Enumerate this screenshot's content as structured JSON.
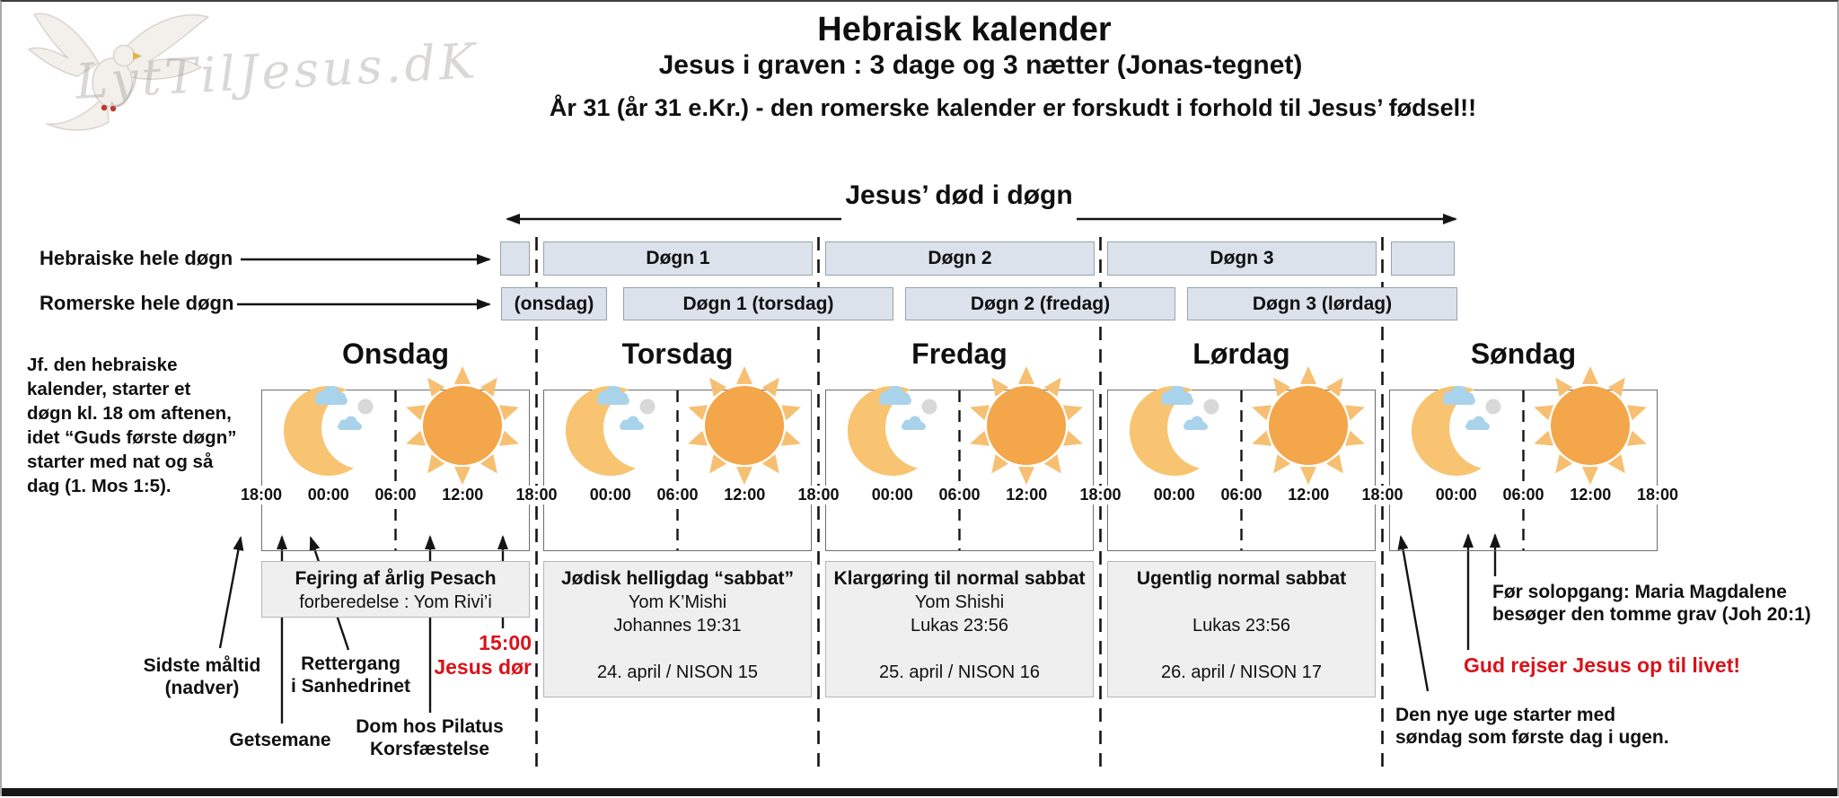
{
  "colors": {
    "red": "#d9121a",
    "row_box_fill": "#dbe2ec",
    "row_box_border": "#99a2ac",
    "note_fill": "#efefef",
    "note_border": "#b6b6b6",
    "panel_border": "#6e6e6e",
    "ink": "#141414",
    "sun": "#f3a64a",
    "sun_ray": "#f7bf71",
    "moon": "#f8c471",
    "cloud": "#a9d2eb",
    "cloud_dot": "#d8d8d8"
  },
  "watermark": {
    "text": "LytTilJesus.dK"
  },
  "header": {
    "title": "Hebraisk kalender",
    "subtitle": "Jesus i graven : 3 dage og 3 nætter (Jonas-tegnet)",
    "note": "År 31 (år 31 e.Kr.)  - den romerske kalender er forskudt i forhold til Jesus’ fødsel!!"
  },
  "death_span": {
    "label": "Jesus’ død i døgn"
  },
  "row_labels": {
    "hebrew": "Hebraiske hele døgn",
    "roman": "Romerske hele døgn"
  },
  "hebrew_row": [
    "",
    "Døgn 1",
    "Døgn 2",
    "Døgn 3",
    ""
  ],
  "roman_row": [
    "(onsdag)",
    "Døgn 1 (torsdag)",
    "Døgn 2 (fredag)",
    "Døgn 3 (lørdag)"
  ],
  "left_note": "Jf. den hebraiske\nkalender, starter et\ndøgn kl. 18 om aftenen,\nidet “Guds første døgn”\nstarter med nat og så\ndag (1. Mos 1:5).",
  "days": [
    "Onsdag",
    "Torsdag",
    "Fredag",
    "Lørdag",
    "Søndag"
  ],
  "timeline": {
    "times": [
      "18:00",
      "00:00",
      "06:00",
      "12:00"
    ],
    "end_time": "18:00"
  },
  "day_notes": [
    {
      "day": 0,
      "title": "Fejring af årlig Pesach",
      "body": "forberedelse : Yom Rivi’i"
    },
    {
      "day": 1,
      "title": "Jødisk helligdag “sabbat”",
      "body": "Yom K’Mishi\nJohannes 19:31\n\n24. april / NISON 15"
    },
    {
      "day": 2,
      "title": "Klargøring til normal sabbat",
      "body": "Yom Shishi\nLukas 23:56\n\n25. april / NISON 16"
    },
    {
      "day": 3,
      "title": "Ugentlig normal sabbat",
      "body": "\nLukas 23:56\n\n26. april / NISON 17"
    }
  ],
  "annotations": {
    "last_supper": "Sidste måltid\n(nadver)",
    "getsemane": "Getsemane",
    "rettergang": "Rettergang\ni Sanhedrinet",
    "pilatus": "Dom hos Pilatus\nKorsfæstelse",
    "death_time": "15:00\nJesus dør",
    "maria": "Før solopgang: Maria Magdalene\nbesøger den tomme grav (Joh 20:1)",
    "resurrection": "Gud rejser Jesus op til livet!",
    "new_week": "Den nye uge starter med\nsøndag som første dag i ugen."
  }
}
